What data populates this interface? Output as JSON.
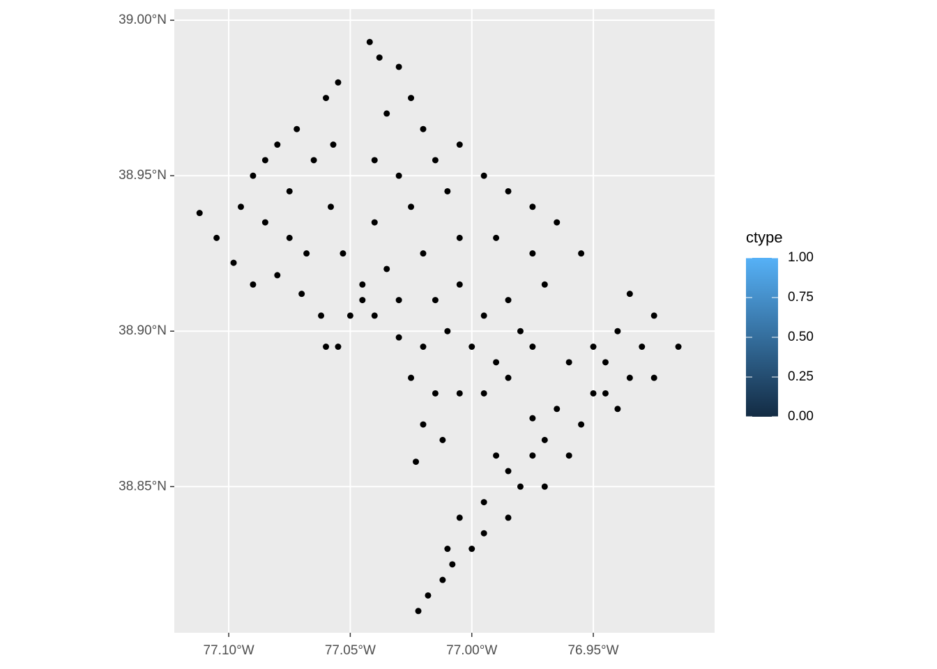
{
  "chart_data": {
    "type": "scatter",
    "color": "#000000",
    "xlim": [
      -77.1224,
      -76.9001
    ],
    "ylim": [
      38.803,
      39.0036
    ],
    "xticks": [
      {
        "value": -77.1,
        "label": "77.10°W"
      },
      {
        "value": -77.05,
        "label": "77.05°W"
      },
      {
        "value": -77.0,
        "label": "77.00°W"
      },
      {
        "value": -76.95,
        "label": "76.95°W"
      }
    ],
    "yticks": [
      {
        "value": 38.85,
        "label": "38.85°N"
      },
      {
        "value": 38.9,
        "label": "38.90°N"
      },
      {
        "value": 38.95,
        "label": "38.95°N"
      },
      {
        "value": 39.0,
        "label": "39.00°N"
      }
    ],
    "grid": true,
    "x": [
      -77.112,
      -77.105,
      -77.095,
      -77.098,
      -77.09,
      -77.085,
      -77.08,
      -77.075,
      -77.072,
      -77.068,
      -77.065,
      -77.06,
      -77.058,
      -77.055,
      -77.053,
      -77.062,
      -77.07,
      -77.08,
      -77.09,
      -77.057,
      -77.075,
      -77.085,
      -77.042,
      -77.038,
      -77.03,
      -77.035,
      -77.025,
      -77.02,
      -77.04,
      -77.03,
      -77.015,
      -77.005,
      -76.995,
      -77.01,
      -77.025,
      -77.04,
      -76.985,
      -76.975,
      -76.965,
      -76.955,
      -76.975,
      -76.99,
      -77.005,
      -77.02,
      -77.035,
      -77.045,
      -77.05,
      -77.04,
      -77.03,
      -77.015,
      -77.005,
      -76.995,
      -76.985,
      -76.97,
      -76.98,
      -76.99,
      -77.0,
      -77.01,
      -77.02,
      -77.03,
      -77.055,
      -77.045,
      -77.025,
      -77.015,
      -77.005,
      -76.995,
      -76.985,
      -76.975,
      -77.02,
      -77.012,
      -77.023,
      -77.06,
      -76.935,
      -76.925,
      -76.915,
      -76.93,
      -76.94,
      -76.945,
      -76.935,
      -76.925,
      -76.95,
      -76.94,
      -76.96,
      -76.955,
      -76.965,
      -76.97,
      -76.96,
      -76.975,
      -76.98,
      -76.985,
      -76.99,
      -76.995,
      -76.985,
      -76.995,
      -77.005,
      -77.0,
      -77.008,
      -77.012,
      -77.018,
      -77.01,
      -77.022,
      -76.95,
      -76.945,
      -76.97,
      -76.975
    ],
    "y": [
      38.938,
      38.93,
      38.94,
      38.922,
      38.95,
      38.935,
      38.96,
      38.945,
      38.965,
      38.925,
      38.955,
      38.975,
      38.94,
      38.98,
      38.925,
      38.905,
      38.912,
      38.918,
      38.915,
      38.96,
      38.93,
      38.955,
      38.993,
      38.988,
      38.985,
      38.97,
      38.975,
      38.965,
      38.955,
      38.95,
      38.955,
      38.96,
      38.95,
      38.945,
      38.94,
      38.935,
      38.945,
      38.94,
      38.935,
      38.925,
      38.925,
      38.93,
      38.93,
      38.925,
      38.92,
      38.915,
      38.905,
      38.905,
      38.91,
      38.91,
      38.915,
      38.905,
      38.91,
      38.915,
      38.9,
      38.89,
      38.895,
      38.9,
      38.895,
      38.898,
      38.895,
      38.91,
      38.885,
      38.88,
      38.88,
      38.88,
      38.885,
      38.895,
      38.87,
      38.865,
      38.858,
      38.895,
      38.912,
      38.905,
      38.895,
      38.895,
      38.9,
      38.89,
      38.885,
      38.885,
      38.88,
      38.875,
      38.89,
      38.87,
      38.875,
      38.865,
      38.86,
      38.86,
      38.85,
      38.855,
      38.86,
      38.845,
      38.84,
      38.835,
      38.84,
      38.83,
      38.825,
      38.82,
      38.815,
      38.83,
      38.81,
      38.895,
      38.88,
      38.85,
      38.872
    ],
    "colorbar": {
      "title": "ctype",
      "lim": [
        0,
        1
      ],
      "low": "#132B43",
      "high": "#56B1F7",
      "ticks": [
        {
          "value": 0,
          "label": "0.00"
        },
        {
          "value": 0.25,
          "label": "0.25"
        },
        {
          "value": 0.5,
          "label": "0.50"
        },
        {
          "value": 0.75,
          "label": "0.75"
        },
        {
          "value": 1,
          "label": "1.00"
        }
      ]
    }
  }
}
